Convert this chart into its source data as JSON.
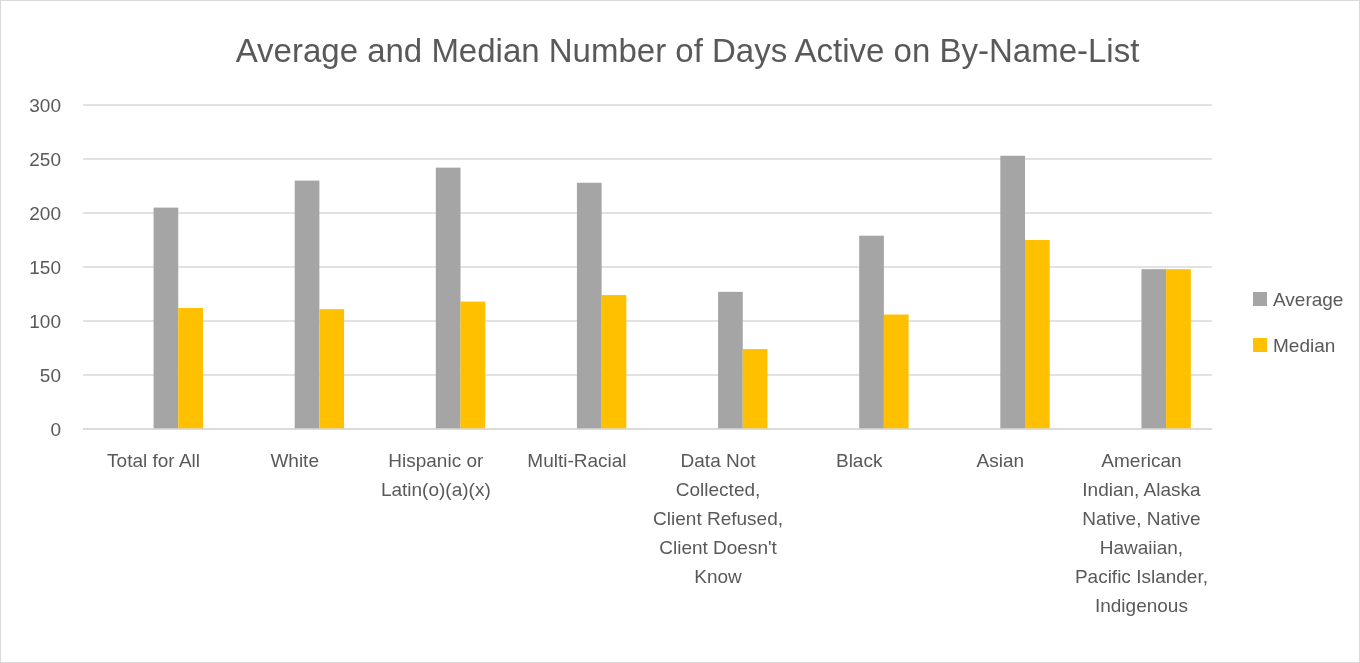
{
  "chart_data": {
    "type": "bar",
    "title": "Average and Median Number of Days Active on By-Name-List",
    "categories": [
      "Total for All",
      "White",
      "Hispanic or Latin(o)(a)(x)",
      "Multi-Racial",
      "Data Not Collected, Client Refused, Client Doesn't Know",
      "Black",
      "Asian",
      "American Indian, Alaska Native, Native Hawaiian, Pacific Islander, Indigenous"
    ],
    "series": [
      {
        "values": [
          null,
          null,
          null,
          null,
          null,
          null,
          null,
          null
        ]
      },
      {
        "values": [
          null,
          null,
          null,
          null,
          null,
          null,
          null,
          null
        ]
      },
      {
        "name": "Average",
        "color": "#a5a5a5",
        "values": [
          205,
          230,
          242,
          228,
          127,
          179,
          253,
          148
        ]
      },
      {
        "name": "Median",
        "color": "#ffc000",
        "values": [
          112,
          111,
          118,
          124,
          74,
          106,
          175,
          148
        ]
      }
    ],
    "ylim": [
      0,
      300
    ],
    "yticks": [
      0,
      50,
      100,
      150,
      200,
      250,
      300
    ],
    "grid": "y",
    "legend": "right"
  }
}
